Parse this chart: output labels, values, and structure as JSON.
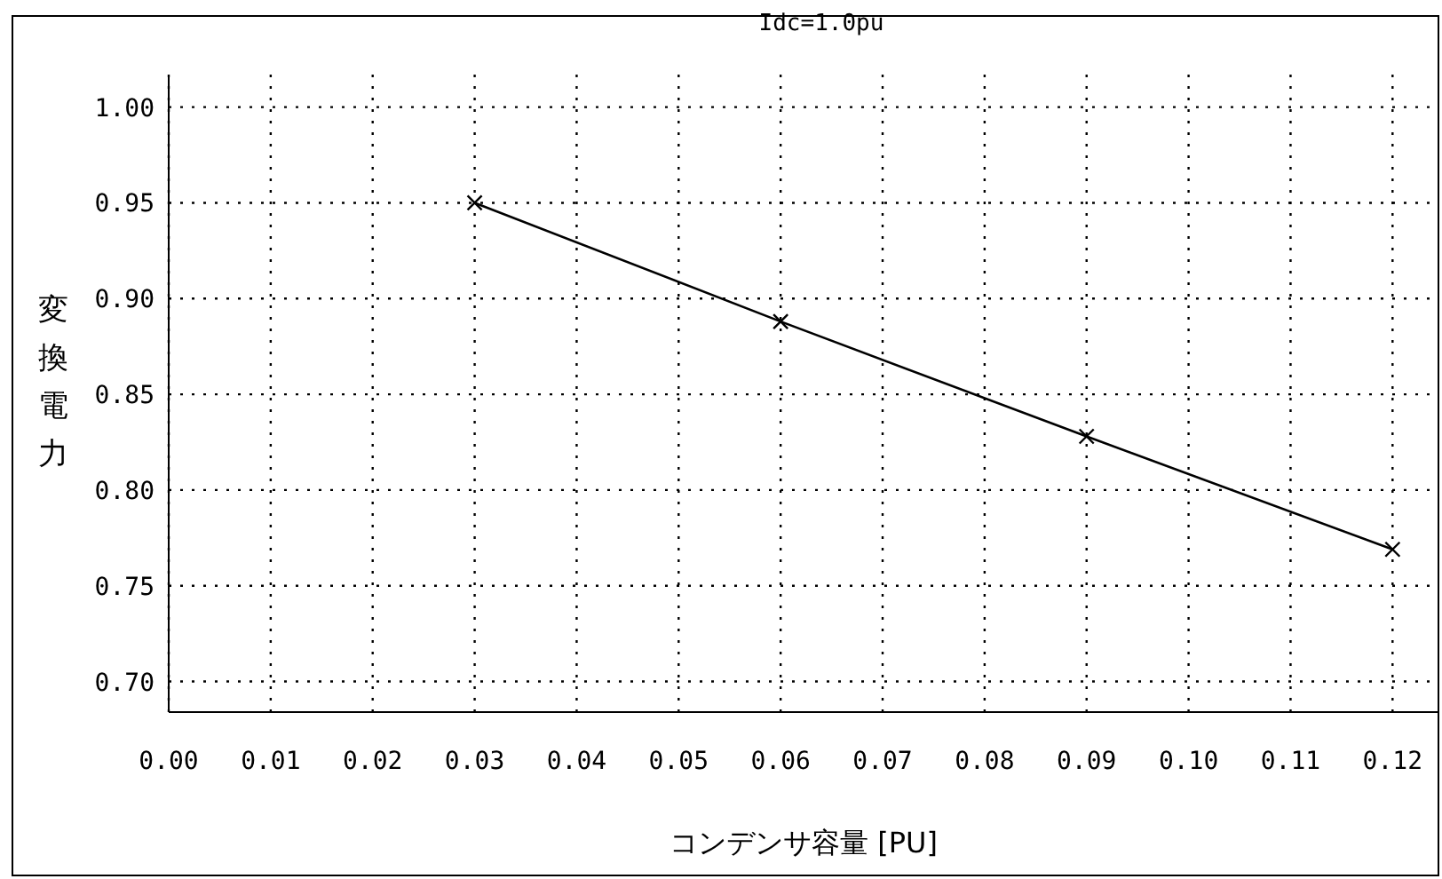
{
  "chart_data": {
    "type": "line",
    "title": "Idc=1.0pu",
    "xlabel": "コンデンサ容量 [PU]",
    "ylabel": "変換電力",
    "x": [
      0.03,
      0.06,
      0.09,
      0.12
    ],
    "series": [
      {
        "color": "#000000",
        "values": [
          0.95,
          0.888,
          0.828,
          0.769
        ]
      }
    ],
    "xlim": [
      0,
      0.1245
    ],
    "ylim": [
      0.684,
      1.017
    ],
    "xticks": [
      {
        "value": 0,
        "label": "0.00"
      },
      {
        "value": 0.01,
        "label": "0.01"
      },
      {
        "value": 0.02,
        "label": "0.02"
      },
      {
        "value": 0.03,
        "label": "0.03"
      },
      {
        "value": 0.04,
        "label": "0.04"
      },
      {
        "value": 0.05,
        "label": "0.05"
      },
      {
        "value": 0.06,
        "label": "0.06"
      },
      {
        "value": 0.07,
        "label": "0.07"
      },
      {
        "value": 0.08,
        "label": "0.08"
      },
      {
        "value": 0.09,
        "label": "0.09"
      },
      {
        "value": 0.1,
        "label": "0.10"
      },
      {
        "value": 0.11,
        "label": "0.11"
      },
      {
        "value": 0.12,
        "label": "0.12"
      }
    ],
    "yticks": [
      {
        "value": 0.7,
        "label": "0.70"
      },
      {
        "value": 0.75,
        "label": "0.75"
      },
      {
        "value": 0.8,
        "label": "0.80"
      },
      {
        "value": 0.85,
        "label": "0.85"
      },
      {
        "value": 0.9,
        "label": "0.90"
      },
      {
        "value": 0.95,
        "label": "0.95"
      },
      {
        "value": 1.0,
        "label": "1.00"
      }
    ],
    "grid": true,
    "marker": "cross",
    "line_style": "solid"
  }
}
